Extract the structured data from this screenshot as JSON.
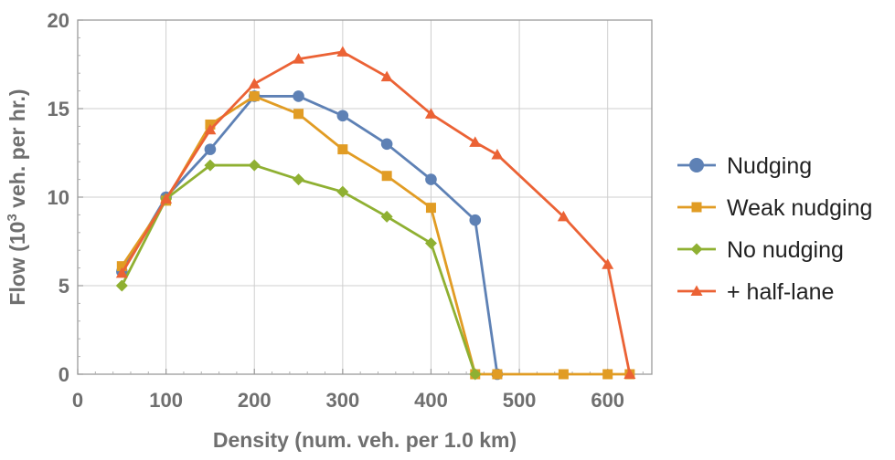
{
  "chart_data": {
    "type": "line",
    "xlabel": "Density (num. veh. per 1.0 km)",
    "ylabel": {
      "prefix": "Flow (10",
      "sup": "3",
      "suffix": " veh. per hr.)"
    },
    "xlim": [
      0,
      650
    ],
    "ylim": [
      0,
      20
    ],
    "xticks": [
      0,
      100,
      200,
      300,
      400,
      500,
      600
    ],
    "yticks": [
      0,
      5,
      10,
      15,
      20
    ],
    "grid": true,
    "legend_position": "right",
    "series": [
      {
        "name": "Nudging",
        "color": "#5e81b5",
        "marker": "circle",
        "x": [
          50,
          100,
          150,
          200,
          250,
          300,
          350,
          400,
          450,
          475
        ],
        "y": [
          5.8,
          10.0,
          12.7,
          15.7,
          15.7,
          14.6,
          13.0,
          11.0,
          8.7,
          0
        ]
      },
      {
        "name": "Weak nudging",
        "color": "#e19c24",
        "marker": "square",
        "x": [
          50,
          100,
          150,
          200,
          250,
          300,
          350,
          400,
          450,
          475,
          550,
          600,
          625
        ],
        "y": [
          6.1,
          9.8,
          14.1,
          15.7,
          14.7,
          12.7,
          11.2,
          9.4,
          0,
          0,
          0,
          0,
          0
        ]
      },
      {
        "name": "No nudging",
        "color": "#8fb032",
        "marker": "diamond",
        "x": [
          50,
          100,
          150,
          200,
          250,
          300,
          350,
          400,
          450
        ],
        "y": [
          5.0,
          9.9,
          11.8,
          11.8,
          11.0,
          10.3,
          8.9,
          7.4,
          0
        ]
      },
      {
        "name": "+ half-lane",
        "color": "#eb6235",
        "marker": "triangle",
        "x": [
          50,
          100,
          150,
          200,
          250,
          300,
          350,
          400,
          450,
          475,
          550,
          600,
          625
        ],
        "y": [
          5.7,
          9.9,
          13.8,
          16.4,
          17.8,
          18.2,
          16.8,
          14.7,
          13.1,
          12.4,
          8.9,
          6.2,
          0
        ]
      }
    ]
  }
}
